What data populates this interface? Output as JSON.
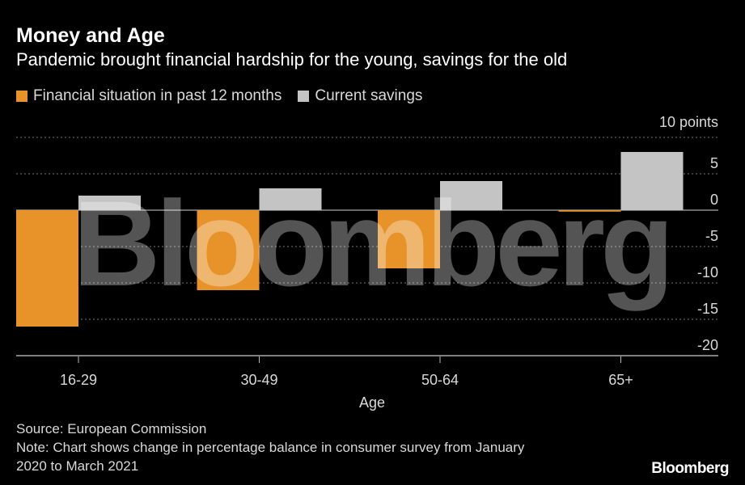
{
  "header": {
    "title": "Money and Age",
    "subtitle": "Pandemic brought financial hardship for the young, savings for the old"
  },
  "legend": {
    "items": [
      {
        "label": "Financial situation in past 12 months",
        "color": "#e8922a"
      },
      {
        "label": "Current savings",
        "color": "#c4c4c4"
      }
    ]
  },
  "chart_data": {
    "type": "bar",
    "categories": [
      "16-29",
      "30-49",
      "50-64",
      "65+"
    ],
    "series": [
      {
        "name": "Financial situation in past 12 months",
        "values": [
          -16.0,
          -11.0,
          -8.0,
          -0.2
        ],
        "color": "#e8922a"
      },
      {
        "name": "Current savings",
        "values": [
          2.0,
          3.0,
          4.0,
          8.0
        ],
        "color": "#c4c4c4"
      }
    ],
    "xlabel": "Age",
    "ylabel": "",
    "unit_label": "10 points",
    "yticks": [
      5,
      0,
      -5,
      -10,
      -15,
      -20
    ],
    "ylim": [
      -20,
      10
    ]
  },
  "footer": {
    "source": "Source: European Commission",
    "note_line1": "Note: Chart shows change in percentage balance in consumer survey from January",
    "note_line2": "2020 to March 2021"
  },
  "watermark": "Bloomberg",
  "logo": "Bloomberg"
}
